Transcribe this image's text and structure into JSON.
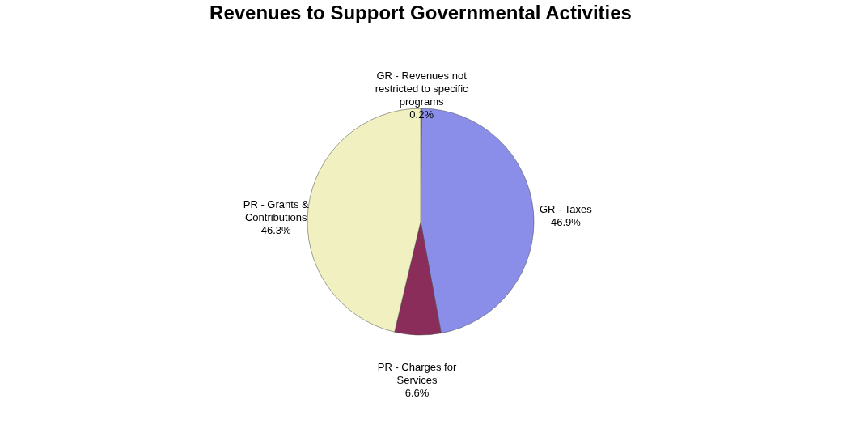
{
  "chart_data": {
    "type": "pie",
    "title": "Revenues to Support Governmental Activities",
    "categories": [
      "GR - Revenues not restricted to specific programs",
      "GR - Taxes",
      "PR - Charges for Services",
      "PR - Grants & Contributions"
    ],
    "values": [
      0.2,
      46.9,
      6.6,
      46.3
    ],
    "value_labels": [
      "0.2%",
      "46.9%",
      "6.6%",
      "46.3%"
    ],
    "colors": [
      "#9fb98c",
      "#8b8ee8",
      "#8b2d5a",
      "#f0f0c0"
    ],
    "legend": false
  }
}
